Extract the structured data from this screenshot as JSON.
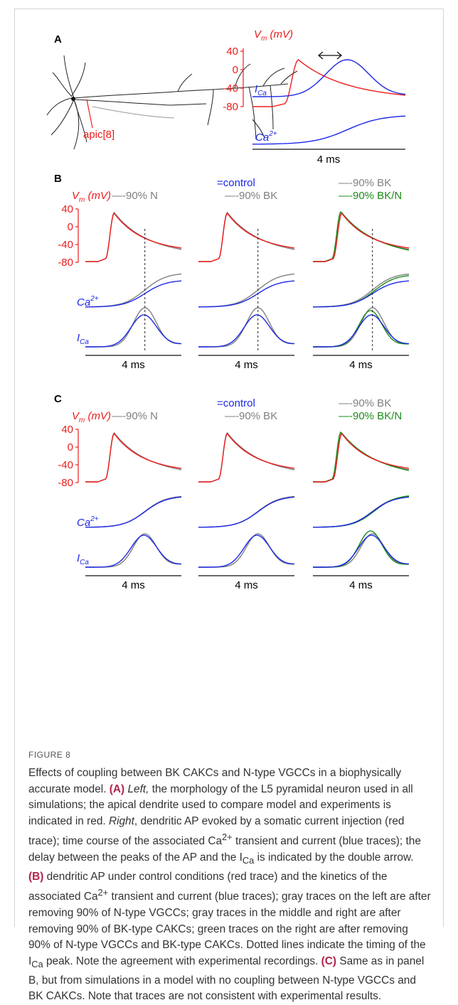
{
  "figure_label": "FIGURE 8",
  "panels": {
    "A": {
      "label": "A",
      "neuron_label": "apic[8]",
      "vm_label": "Vm (mV)",
      "ica_label": "ICa",
      "ca_label": "Ca2+",
      "y_ticks": [
        "40",
        "0",
        "-40",
        "-80"
      ],
      "scale_bar": "4 ms"
    },
    "B": {
      "label": "B",
      "vm_label": "Vm (mV)",
      "y_ticks": [
        "40",
        "0",
        "-40",
        "-80"
      ],
      "legend_control": "=control",
      "legend_left": "—-90% N",
      "legend_middle": "—-90% BK",
      "legend_right_1": "—-90% BK",
      "legend_right_2": "—-90% BK/N",
      "ca_label": "Ca2+",
      "ica_label": "ICa",
      "scale_bar": "4 ms"
    },
    "C": {
      "label": "C",
      "vm_label": "Vm (mV)",
      "y_ticks": [
        "40",
        "0",
        "-40",
        "-80"
      ],
      "legend_control": "=control",
      "legend_left": "—-90% N",
      "legend_middle": "—-90% BK",
      "legend_right_1": "—-90% BK",
      "legend_right_2": "—-90% BK/N",
      "ca_label": "Ca2+",
      "ica_label": "ICa",
      "scale_bar": "4 ms"
    }
  },
  "colors": {
    "control_vm": "#ee1c1c",
    "control_ca": "#1c28e6",
    "reduced": "#808080",
    "combined": "#1a8c1a",
    "caption_bold": "#b2244a"
  },
  "caption_parts": {
    "p1": "Effects of coupling between BK CAKCs and N-type VGCCs in a biophysically accurate model.",
    "a": "(A)",
    "left": "Left,",
    "p2": "the morphology of the L5 pyramidal neuron used in all simulations; the apical dendrite used to compare model and experiments is indicated in red.",
    "right": "Right",
    "p3": ", dendritic AP evoked by a somatic current injection (red trace); time course of the associated Ca",
    "sup_ca": "2+",
    "p4": "transient and current (blue traces); the delay between the peaks of the AP and the I",
    "sub_ca": "Ca",
    "p5": "is indicated by the double arrow.",
    "b": "(B)",
    "p6": "dendritic AP under control conditions (red trace) and the kinetics of the associated Ca",
    "p7": "transient and current (blue traces); gray traces on the left are after removing 90% of N-type VGCCs; gray traces in the middle and right are after removing 90% of BK-type CAKCs; green traces on the right are after removing 90% of N-type VGCCs and BK-type CAKCs. Dotted lines indicate the timing of the I",
    "p8": "peak. Note the agreement with experimental recordings.",
    "c": "(C)",
    "p9": "Same as in panel B, but from simulations in a model with no coupling between N-type VGCCs and BK CAKCs. Note that traces are not consistent with experimental results."
  }
}
